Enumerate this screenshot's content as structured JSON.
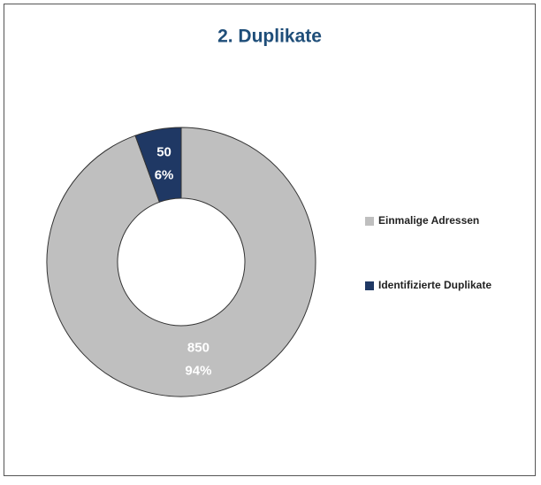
{
  "chart_data": {
    "type": "donut",
    "title": "2. Duplikate",
    "categories": [
      "Einmalige Adressen",
      "Identifizierte Duplikate"
    ],
    "values": [
      850,
      50
    ],
    "percent_labels": [
      "94%",
      "6%"
    ],
    "colors": [
      "#bfbfbf",
      "#1f3864"
    ],
    "legend": "right"
  }
}
